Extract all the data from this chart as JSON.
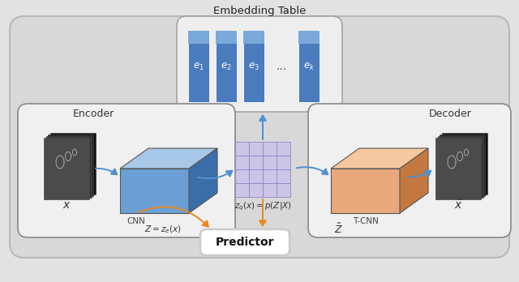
{
  "bg_color": "#e2e2e2",
  "title": "Embedding Table",
  "encoder_label": "Encoder",
  "decoder_label": "Decoder",
  "predictor_label": "Predictor",
  "cnn_label": "CNN",
  "tcnn_label": "T-CNN",
  "blue_face": "#6b9fd4",
  "blue_top": "#a8c8e8",
  "blue_side": "#3a6ea8",
  "orange_face": "#e8a87c",
  "orange_top": "#f5c8a0",
  "orange_side": "#c47840",
  "emb_blue": "#4a7bbd",
  "emb_blue_top": "#7aa8d8",
  "arrow_blue": "#5090d0",
  "arrow_orange": "#e88820",
  "grid_fill": "#ccc5e8",
  "grid_edge": "#9088c0",
  "panel_outer": "#d5d5d5",
  "panel_inner": "#f0f0f0",
  "panel_emb": "#eeeeee"
}
